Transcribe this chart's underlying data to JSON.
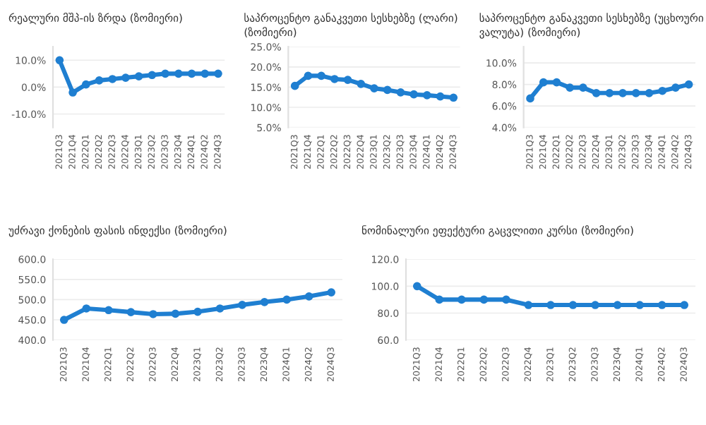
{
  "chart_data": [
    {
      "type": "line",
      "title": "რეალური მშპ-ის ზრდა (ზომიერი)",
      "categories": [
        "2021Q3",
        "2021Q4",
        "2022Q1",
        "2022Q2",
        "2022Q3",
        "2022Q4",
        "2023Q1",
        "2023Q2",
        "2023Q3",
        "2023Q4",
        "2024Q1",
        "2024Q2",
        "2024Q3"
      ],
      "series": [
        {
          "color": "#1f7fd1",
          "values": [
            10,
            -2,
            1,
            2.5,
            3,
            3.5,
            4,
            4.5,
            5,
            5,
            5,
            5,
            5
          ]
        }
      ],
      "ylim": [
        -15,
        15
      ],
      "yticks": [
        {
          "value": -10,
          "label": "-10.0%"
        },
        {
          "value": 0,
          "label": "0.0%"
        },
        {
          "value": 10,
          "label": "10.0%"
        }
      ],
      "grid": "y",
      "marker": "circle",
      "line_style": "solid",
      "legend": false
    },
    {
      "type": "line",
      "title": "საპროცენტო განაკვეთი სესხებზე (ლარი)\n(ზომიერი)",
      "categories": [
        "2021Q3",
        "2021Q4",
        "2022Q1",
        "2022Q2",
        "2022Q3",
        "2022Q4",
        "2023Q1",
        "2023Q2",
        "2023Q3",
        "2023Q4",
        "2024Q1",
        "2024Q2",
        "2024Q3"
      ],
      "series": [
        {
          "color": "#1f7fd1",
          "values": [
            15.3,
            17.8,
            17.8,
            17.0,
            16.8,
            15.8,
            14.7,
            14.3,
            13.7,
            13.2,
            13.0,
            12.7,
            12.4
          ]
        }
      ],
      "ylim": [
        5,
        25
      ],
      "yticks": [
        {
          "value": 5,
          "label": "5.0%"
        },
        {
          "value": 10,
          "label": "10.0%"
        },
        {
          "value": 15,
          "label": "15.0%"
        },
        {
          "value": 20,
          "label": "20.0%"
        },
        {
          "value": 25,
          "label": "25.0%"
        }
      ],
      "grid": "y",
      "marker": "circle",
      "line_style": "solid",
      "legend": false
    },
    {
      "type": "line",
      "title": "საპროცენტო განაკვეთი სესხებზე (უცხოური\nვალუტა) (ზომიერი)",
      "categories": [
        "2021Q3",
        "2021Q4",
        "2022Q1",
        "2022Q2",
        "2022Q3",
        "2022Q4",
        "2023Q1",
        "2023Q2",
        "2023Q3",
        "2023Q4",
        "2024Q1",
        "2024Q2",
        "2024Q3"
      ],
      "series": [
        {
          "color": "#1f7fd1",
          "values": [
            6.7,
            8.2,
            8.2,
            7.7,
            7.7,
            7.2,
            7.2,
            7.2,
            7.2,
            7.2,
            7.4,
            7.7,
            8.0
          ]
        }
      ],
      "ylim": [
        4,
        11.5
      ],
      "yticks": [
        {
          "value": 4,
          "label": "4.0%"
        },
        {
          "value": 6,
          "label": "6.0%"
        },
        {
          "value": 8,
          "label": "8.0%"
        },
        {
          "value": 10,
          "label": "10.0%"
        }
      ],
      "grid": "y",
      "marker": "circle",
      "line_style": "solid",
      "legend": false
    },
    {
      "type": "line",
      "title": "უძრავი ქონების ფასის ინდექსი (ზომიერი)",
      "categories": [
        "2021Q3",
        "2021Q4",
        "2022Q1",
        "2022Q2",
        "2022Q3",
        "2022Q4",
        "2023Q1",
        "2023Q2",
        "2023Q3",
        "2023Q4",
        "2024Q1",
        "2024Q2",
        "2024Q3"
      ],
      "series": [
        {
          "color": "#1f7fd1",
          "values": [
            450,
            478,
            474,
            469,
            464,
            465,
            470,
            478,
            487,
            494,
            500,
            508,
            518
          ]
        }
      ],
      "ylim": [
        400,
        600
      ],
      "yticks": [
        {
          "value": 400,
          "label": "400.0"
        },
        {
          "value": 450,
          "label": "450.0"
        },
        {
          "value": 500,
          "label": "500.0"
        },
        {
          "value": 550,
          "label": "550.0"
        },
        {
          "value": 600,
          "label": "600.0"
        }
      ],
      "grid": "y",
      "marker": "circle",
      "line_style": "solid",
      "legend": false
    },
    {
      "type": "line",
      "title": "ნომინალური ეფექტური გაცვლითი კურსი (ზომიერი)",
      "categories": [
        "2021Q3",
        "2021Q4",
        "2022Q1",
        "2022Q2",
        "2022Q3",
        "2022Q4",
        "2023Q1",
        "2023Q2",
        "2023Q3",
        "2023Q4",
        "2024Q1",
        "2024Q2",
        "2024Q3"
      ],
      "series": [
        {
          "color": "#1f7fd1",
          "values": [
            100,
            90,
            90,
            90,
            90,
            86,
            86,
            86,
            86,
            86,
            86,
            86,
            86
          ]
        }
      ],
      "ylim": [
        60,
        120
      ],
      "yticks": [
        {
          "value": 60,
          "label": "60.0"
        },
        {
          "value": 80,
          "label": "80.0"
        },
        {
          "value": 100,
          "label": "100.0"
        },
        {
          "value": 120,
          "label": "120.0"
        }
      ],
      "grid": "y",
      "marker": "circle",
      "line_style": "solid",
      "legend": false
    }
  ]
}
